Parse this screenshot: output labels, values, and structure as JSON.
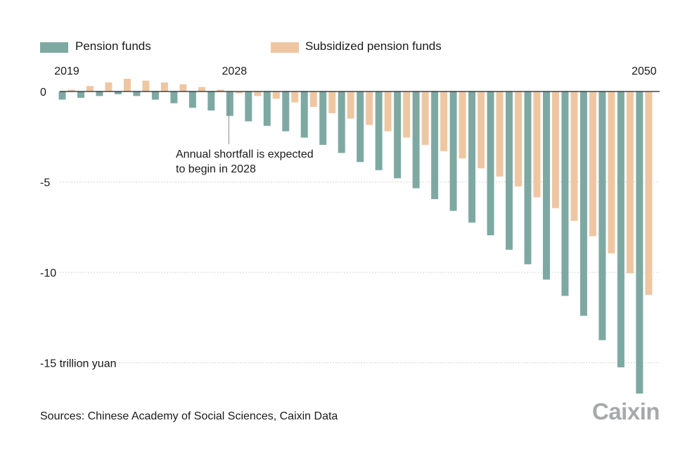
{
  "chart_data": {
    "type": "bar",
    "title": "",
    "xlabel": "",
    "ylabel": "trillion yuan",
    "ylim": [
      -17,
      0
    ],
    "yticks": [
      {
        "value": 0,
        "label": "0"
      },
      {
        "value": -5,
        "label": "-5"
      },
      {
        "value": -10,
        "label": "-10"
      },
      {
        "value": -15,
        "label": "-15 trillion yuan"
      }
    ],
    "year_labels": [
      {
        "year": 2019,
        "label": "2019"
      },
      {
        "year": 2028,
        "label": "2028"
      },
      {
        "year": 2050,
        "label": "2050"
      }
    ],
    "categories": [
      2019,
      2020,
      2021,
      2022,
      2023,
      2024,
      2025,
      2026,
      2027,
      2028,
      2029,
      2030,
      2031,
      2032,
      2033,
      2034,
      2035,
      2036,
      2037,
      2038,
      2039,
      2040,
      2041,
      2042,
      2043,
      2044,
      2045,
      2046,
      2047,
      2048,
      2049,
      2050
    ],
    "series": [
      {
        "name": "Pension funds",
        "color": "#7ea9a3",
        "values": [
          -0.45,
          -0.35,
          -0.25,
          -0.15,
          -0.25,
          -0.45,
          -0.65,
          -0.9,
          -1.05,
          -1.35,
          -1.65,
          -1.9,
          -2.2,
          -2.55,
          -2.95,
          -3.4,
          -3.9,
          -4.35,
          -4.8,
          -5.35,
          -5.95,
          -6.6,
          -7.25,
          -7.95,
          -8.75,
          -9.55,
          -10.4,
          -11.3,
          -12.4,
          -13.75,
          -15.25,
          -16.7
        ]
      },
      {
        "name": "Subsidized pension funds",
        "color": "#eec7a2",
        "values": [
          0.1,
          0.3,
          0.5,
          0.7,
          0.6,
          0.5,
          0.4,
          0.25,
          0.1,
          -0.1,
          -0.25,
          -0.4,
          -0.6,
          -0.85,
          -1.2,
          -1.5,
          -1.85,
          -2.2,
          -2.55,
          -2.95,
          -3.3,
          -3.7,
          -4.25,
          -4.7,
          -5.25,
          -5.85,
          -6.45,
          -7.15,
          -8.0,
          -8.95,
          -10.05,
          -11.25
        ]
      }
    ],
    "annotation": {
      "year": 2028,
      "lines": [
        "Annual shortfall is expected",
        "to begin in 2028"
      ]
    }
  },
  "legend": {
    "pension": "Pension funds",
    "subsidized": "Subsidized pension funds"
  },
  "source": "Sources: Chinese Academy of Social Sciences, Caixin Data",
  "brand": "Caixin"
}
